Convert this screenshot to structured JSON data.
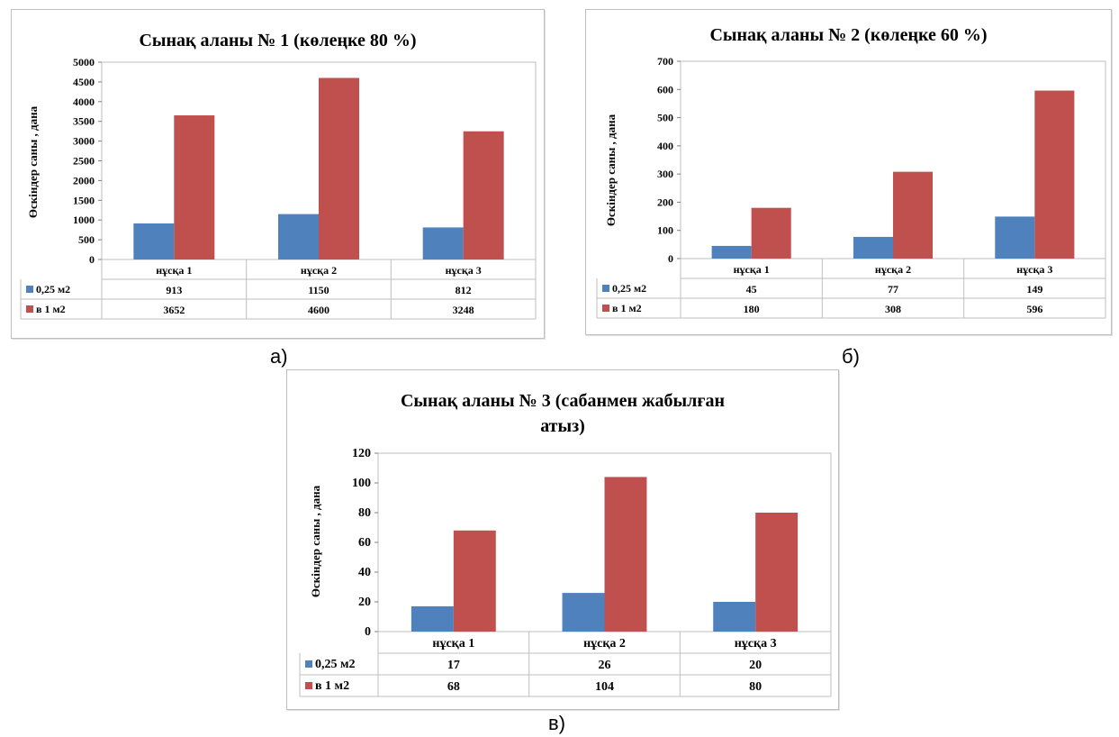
{
  "colors": {
    "series1": "#4f81bd",
    "series2": "#c0504d",
    "grid": "#bfbfbf"
  },
  "captions": [
    "а)",
    "б)",
    "в)"
  ],
  "chart_data": [
    {
      "type": "bar",
      "title": "Сынақ аланы № 1 (көлеңке 80 %)",
      "ylabel": "Өскіндер саны , дана",
      "categories": [
        "нұсқа 1",
        "нұсқа 2",
        "нұсқа 3"
      ],
      "ylim": [
        0,
        5000
      ],
      "ystep": 500,
      "yticks": [
        "0",
        "500",
        "1000",
        "1500",
        "2000",
        "2500",
        "3000",
        "3500",
        "4000",
        "4500",
        "5000"
      ],
      "legend": "data-table",
      "series": [
        {
          "name": "0,25 м2",
          "values": [
            913,
            1150,
            812
          ]
        },
        {
          "name": "в 1 м2",
          "values": [
            3652,
            4600,
            3248
          ]
        }
      ]
    },
    {
      "type": "bar",
      "title": "Сынақ аланы № 2 (көлеңке 60 %)",
      "ylabel": "Өскіндер саны , дана",
      "categories": [
        "нұсқа 1",
        "нұсқа 2",
        "нұсқа 3"
      ],
      "ylim": [
        0,
        700
      ],
      "ystep": 100,
      "yticks": [
        "0",
        "100",
        "200",
        "300",
        "400",
        "500",
        "600",
        "700"
      ],
      "legend": "data-table",
      "series": [
        {
          "name": "0,25 м2",
          "values": [
            45,
            77,
            149
          ]
        },
        {
          "name": "в 1 м2",
          "values": [
            180,
            308,
            596
          ]
        }
      ]
    },
    {
      "type": "bar",
      "title": "Сынақ аланы № 3 (сабанмен жабылған атыз)",
      "title_lines": [
        "Сынақ аланы № 3 (сабанмен жабылған",
        "атыз)"
      ],
      "ylabel": "Өскіндер саны , дана",
      "categories": [
        "нұсқа 1",
        "нұсқа 2",
        "нұсқа 3"
      ],
      "ylim": [
        0,
        120
      ],
      "ystep": 20,
      "yticks": [
        "0",
        "20",
        "40",
        "60",
        "80",
        "100",
        "120"
      ],
      "legend": "data-table",
      "series": [
        {
          "name": "0,25 м2",
          "values": [
            17,
            26,
            20
          ]
        },
        {
          "name": "в 1 м2",
          "values": [
            68,
            104,
            80
          ]
        }
      ]
    }
  ]
}
